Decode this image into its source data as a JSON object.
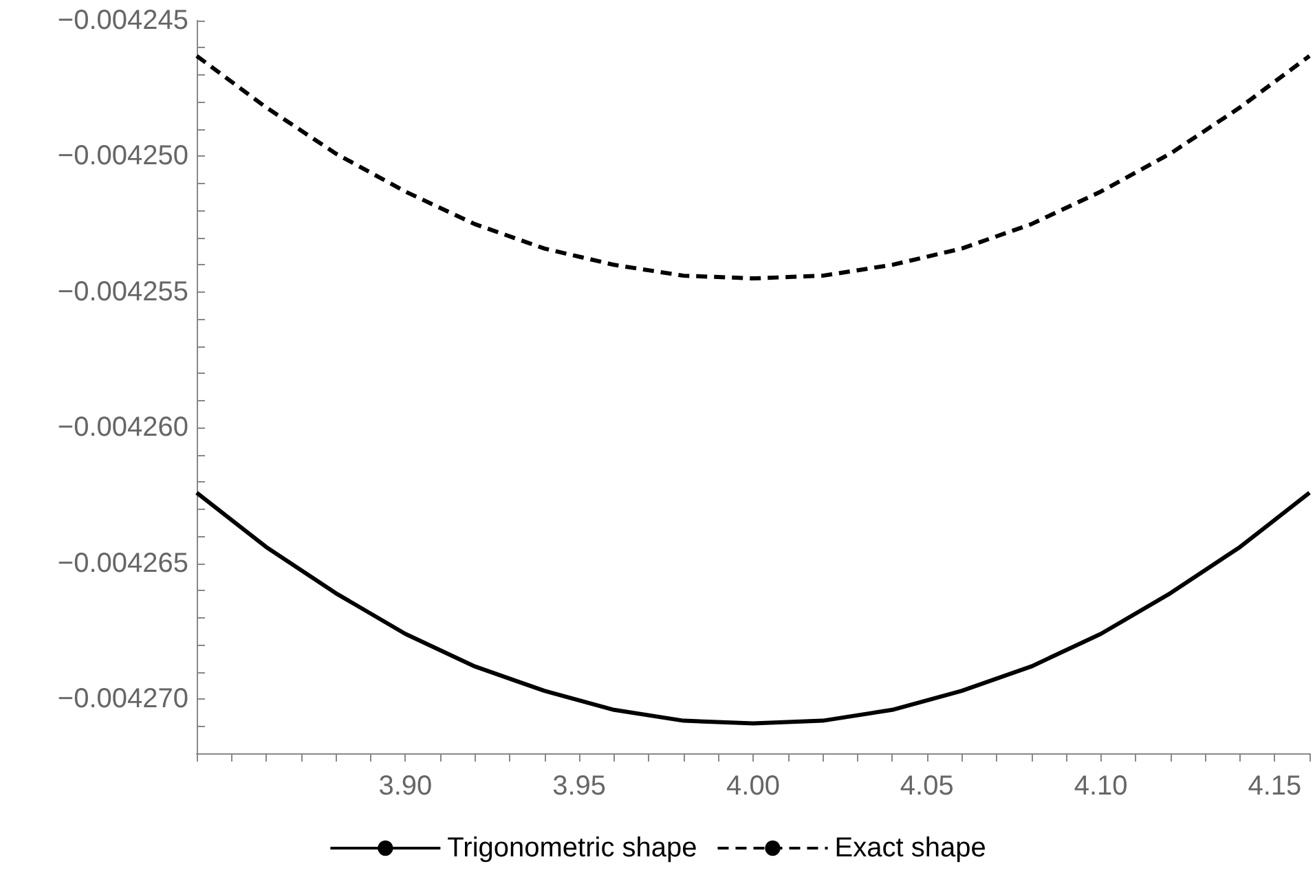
{
  "chart_data": {
    "type": "line",
    "legend": "bottom",
    "grid": false,
    "marker": "none",
    "xlim": [
      3.84,
      4.16
    ],
    "ylim": [
      -0.004272,
      -0.004245
    ],
    "xticks": [
      {
        "value": 3.84,
        "label": null
      },
      {
        "value": 3.85,
        "label": null
      },
      {
        "value": 3.86,
        "label": null
      },
      {
        "value": 3.87,
        "label": null
      },
      {
        "value": 3.88,
        "label": null
      },
      {
        "value": 3.89,
        "label": null
      },
      {
        "value": 3.9,
        "label": "3.90"
      },
      {
        "value": 3.91,
        "label": null
      },
      {
        "value": 3.92,
        "label": null
      },
      {
        "value": 3.93,
        "label": null
      },
      {
        "value": 3.94,
        "label": null
      },
      {
        "value": 3.95,
        "label": "3.95"
      },
      {
        "value": 3.96,
        "label": null
      },
      {
        "value": 3.97,
        "label": null
      },
      {
        "value": 3.98,
        "label": null
      },
      {
        "value": 3.99,
        "label": null
      },
      {
        "value": 4.0,
        "label": "4.00"
      },
      {
        "value": 4.01,
        "label": null
      },
      {
        "value": 4.02,
        "label": null
      },
      {
        "value": 4.03,
        "label": null
      },
      {
        "value": 4.04,
        "label": null
      },
      {
        "value": 4.05,
        "label": "4.05"
      },
      {
        "value": 4.06,
        "label": null
      },
      {
        "value": 4.07,
        "label": null
      },
      {
        "value": 4.08,
        "label": null
      },
      {
        "value": 4.09,
        "label": null
      },
      {
        "value": 4.1,
        "label": "4.10"
      },
      {
        "value": 4.11,
        "label": null
      },
      {
        "value": 4.12,
        "label": null
      },
      {
        "value": 4.13,
        "label": null
      },
      {
        "value": 4.14,
        "label": null
      },
      {
        "value": 4.15,
        "label": "4.15"
      },
      {
        "value": 4.16,
        "label": null
      }
    ],
    "yticks": [
      {
        "value": -0.004272,
        "label": null
      },
      {
        "value": -0.004271,
        "label": null
      },
      {
        "value": -0.00427,
        "label": "−0.004270"
      },
      {
        "value": -0.004269,
        "label": null
      },
      {
        "value": -0.004268,
        "label": null
      },
      {
        "value": -0.004267,
        "label": null
      },
      {
        "value": -0.004266,
        "label": null
      },
      {
        "value": -0.004265,
        "label": "−0.004265"
      },
      {
        "value": -0.004264,
        "label": null
      },
      {
        "value": -0.004263,
        "label": null
      },
      {
        "value": -0.004262,
        "label": null
      },
      {
        "value": -0.004261,
        "label": null
      },
      {
        "value": -0.00426,
        "label": "−0.004260"
      },
      {
        "value": -0.004259,
        "label": null
      },
      {
        "value": -0.004258,
        "label": null
      },
      {
        "value": -0.004257,
        "label": null
      },
      {
        "value": -0.004256,
        "label": null
      },
      {
        "value": -0.004255,
        "label": "−0.004255"
      },
      {
        "value": -0.004254,
        "label": null
      },
      {
        "value": -0.004253,
        "label": null
      },
      {
        "value": -0.004252,
        "label": null
      },
      {
        "value": -0.004251,
        "label": null
      },
      {
        "value": -0.00425,
        "label": "−0.004250"
      },
      {
        "value": -0.004249,
        "label": null
      },
      {
        "value": -0.004248,
        "label": null
      },
      {
        "value": -0.004247,
        "label": null
      },
      {
        "value": -0.004246,
        "label": null
      },
      {
        "value": -0.004245,
        "label": "−0.004245"
      }
    ],
    "x": [
      3.84,
      3.86,
      3.88,
      3.9,
      3.92,
      3.94,
      3.96,
      3.98,
      4.0,
      4.02,
      4.04,
      4.06,
      4.08,
      4.1,
      4.12,
      4.14,
      4.16
    ],
    "series": [
      {
        "name": "Trigonometric shape",
        "color": "#000000",
        "line_style": "solid",
        "values": [
          -0.0042624,
          -0.0042644,
          -0.0042661,
          -0.0042676,
          -0.0042688,
          -0.0042697,
          -0.0042704,
          -0.0042708,
          -0.0042709,
          -0.0042708,
          -0.0042704,
          -0.0042697,
          -0.0042688,
          -0.0042676,
          -0.0042661,
          -0.0042644,
          -0.0042624
        ]
      },
      {
        "name": "Exact shape",
        "color": "#000000",
        "line_style": "dashed",
        "values": [
          -0.0042463,
          -0.0042482,
          -0.0042499,
          -0.0042513,
          -0.0042525,
          -0.0042534,
          -0.004254,
          -0.0042544,
          -0.0042545,
          -0.0042544,
          -0.004254,
          -0.0042534,
          -0.0042525,
          -0.0042513,
          -0.0042499,
          -0.0042482,
          -0.0042463
        ]
      }
    ]
  }
}
